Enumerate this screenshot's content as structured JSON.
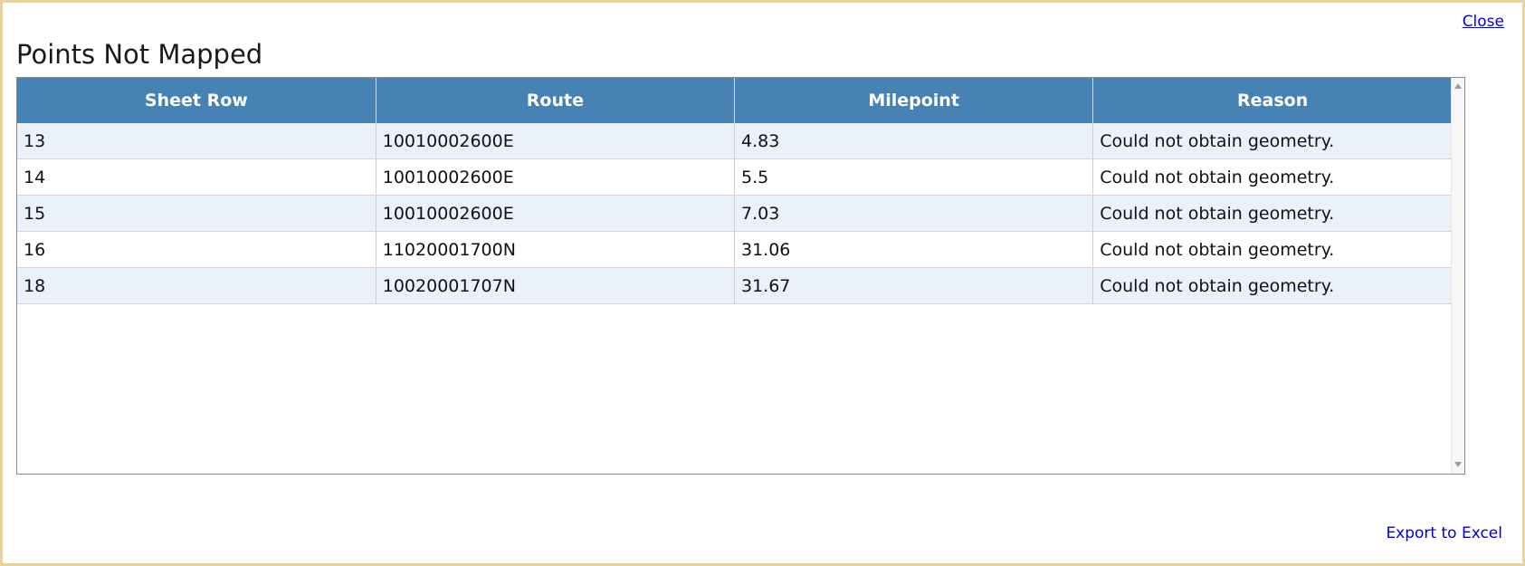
{
  "header": {
    "close_label": "Close",
    "title": "Points Not Mapped"
  },
  "table": {
    "columns": [
      "Sheet Row",
      "Route",
      "Milepoint",
      "Reason"
    ],
    "rows": [
      [
        "13",
        "10010002600E",
        "4.83",
        "Could not obtain geometry."
      ],
      [
        "14",
        "10010002600E",
        "5.5",
        "Could not obtain geometry."
      ],
      [
        "15",
        "10010002600E",
        "7.03",
        "Could not obtain geometry."
      ],
      [
        "16",
        "11020001700N",
        "31.06",
        "Could not obtain geometry."
      ],
      [
        "18",
        "10020001707N",
        "31.67",
        "Could not obtain geometry."
      ]
    ]
  },
  "footer": {
    "export_label": "Export to Excel"
  },
  "colors": {
    "header_bg": "#4682b4",
    "row_alt": "#eaf1fb",
    "frame_border": "#e8d39a",
    "link": "#0000ee"
  }
}
